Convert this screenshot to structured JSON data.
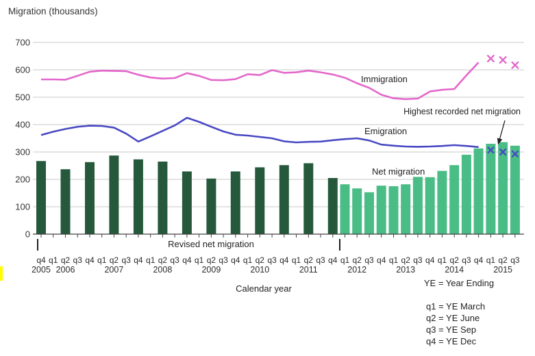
{
  "title": "Migration (thousands)",
  "xlabel": "Calendar year",
  "labels": {
    "immigration": "Immigration",
    "emigration": "Emigration",
    "net_migration": "Net migration",
    "revised_section": "Revised net migration",
    "highest_annotation": "Highest recorded net migration"
  },
  "legend": {
    "ye": "YE = Year Ending",
    "q1": "q1 = YE March",
    "q2": "q2 = YE June",
    "q3": "q3 = YE Sep",
    "q4": "q4 = YE Dec"
  },
  "colors": {
    "revised_net_bar": "#26593c",
    "net_bar": "#4abc86",
    "immigration_line": "#e466cb",
    "emigration_line": "#4848c4",
    "gridline": "#c9c9c9",
    "axis": "#404040",
    "text": "#1f1f1f",
    "artifact_yellow": "#ffff00"
  },
  "chart_data": {
    "type": "combo-bar-line",
    "ylabel": "Migration (thousands)",
    "ylim": [
      0,
      700
    ],
    "ytick_step": 100,
    "grid": true,
    "quarters": [
      "q4",
      "q1",
      "q2",
      "q3",
      "q4",
      "q1",
      "q2",
      "q3",
      "q4",
      "q1",
      "q2",
      "q3",
      "q4",
      "q1",
      "q2",
      "q3",
      "q4",
      "q1",
      "q2",
      "q3",
      "q4",
      "q1",
      "q2",
      "q3",
      "q4",
      "q1",
      "q2",
      "q3",
      "q4",
      "q1",
      "q2",
      "q3",
      "q4",
      "q1",
      "q2",
      "q3",
      "q4",
      "q1",
      "q2",
      "q3"
    ],
    "year_groups": [
      {
        "year": "2005",
        "start": 0,
        "count": 1,
        "center_i": 0
      },
      {
        "year": "2006",
        "start": 1,
        "count": 4,
        "center_i": 2
      },
      {
        "year": "2007",
        "start": 5,
        "count": 4,
        "center_i": 6
      },
      {
        "year": "2008",
        "start": 9,
        "count": 4,
        "center_i": 10
      },
      {
        "year": "2009",
        "start": 13,
        "count": 4,
        "center_i": 14
      },
      {
        "year": "2010",
        "start": 17,
        "count": 4,
        "center_i": 18
      },
      {
        "year": "2011",
        "start": 21,
        "count": 4,
        "center_i": 22
      },
      {
        "year": "2012",
        "start": 25,
        "count": 4,
        "center_i": 26
      },
      {
        "year": "2013",
        "start": 29,
        "count": 4,
        "center_i": 30
      },
      {
        "year": "2014",
        "start": 33,
        "count": 4,
        "center_i": 34
      },
      {
        "year": "2015",
        "start": 37,
        "count": 3,
        "center_i": 38
      }
    ],
    "series": [
      {
        "name": "Revised net migration",
        "type": "bar",
        "color": "#26593c",
        "values": [
          267,
          null,
          237,
          null,
          263,
          null,
          287,
          null,
          273,
          null,
          265,
          null,
          229,
          null,
          203,
          null,
          229,
          null,
          244,
          null,
          252,
          null,
          259,
          null,
          205,
          null,
          null,
          null,
          null,
          null,
          null,
          null,
          null,
          null,
          null,
          null,
          null,
          null,
          null,
          null
        ]
      },
      {
        "name": "Net migration",
        "type": "bar",
        "color": "#4abc86",
        "values": [
          null,
          null,
          null,
          null,
          null,
          null,
          null,
          null,
          null,
          null,
          null,
          null,
          null,
          null,
          null,
          null,
          null,
          null,
          null,
          null,
          null,
          null,
          null,
          null,
          null,
          182,
          167,
          153,
          177,
          175,
          182,
          209,
          208,
          231,
          252,
          290,
          313,
          330,
          336,
          323
        ]
      },
      {
        "name": "Immigration",
        "type": "line",
        "color": "#e466cb",
        "values": [
          565,
          565,
          564,
          578,
          593,
          597,
          596,
          595,
          582,
          572,
          568,
          570,
          588,
          578,
          563,
          562,
          566,
          584,
          581,
          599,
          589,
          591,
          597,
          591,
          583,
          571,
          551,
          534,
          509,
          496,
          493,
          495,
          521,
          527,
          530,
          580,
          627
        ],
        "markers": [
          {
            "i": 37,
            "v": 641
          },
          {
            "i": 38,
            "v": 636
          },
          {
            "i": 39,
            "v": 617
          }
        ]
      },
      {
        "name": "Emigration",
        "type": "line",
        "color": "#4848c4",
        "values": [
          362,
          374,
          384,
          392,
          396,
          395,
          389,
          367,
          338,
          357,
          377,
          397,
          425,
          410,
          392,
          375,
          363,
          360,
          355,
          350,
          339,
          335,
          337,
          338,
          343,
          347,
          350,
          342,
          327,
          323,
          320,
          319,
          320,
          322,
          325,
          322,
          318
        ],
        "markers": [
          {
            "i": 37,
            "v": 307
          },
          {
            "i": 38,
            "v": 300
          },
          {
            "i": 39,
            "v": 293
          }
        ]
      }
    ],
    "annotation": {
      "highest_points_to": {
        "quarter_index": 38,
        "year": "2015",
        "quarter": "q2"
      }
    }
  }
}
